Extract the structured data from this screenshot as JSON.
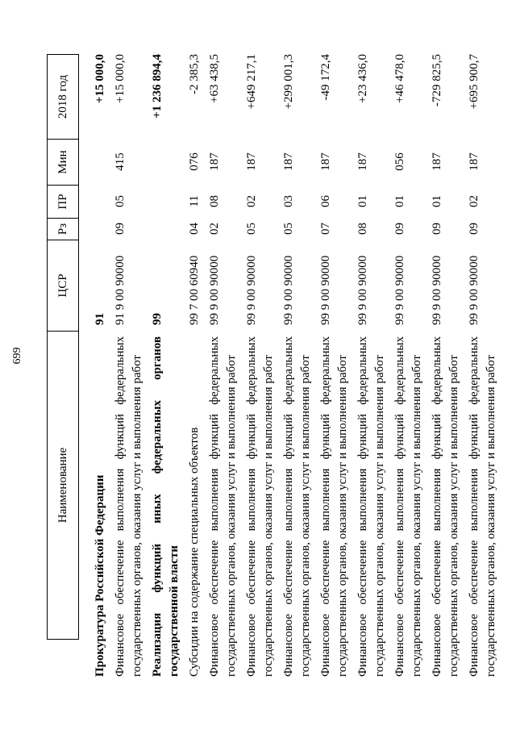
{
  "page": {
    "number": "699"
  },
  "table": {
    "headers": {
      "name": "Наименование",
      "csr": "ЦСР",
      "rz": "Рз",
      "pr": "ПР",
      "min": "Мин",
      "year": "2018 год"
    },
    "rows": [
      {
        "name_lines": [
          "Прокуратура Российской Федерации"
        ],
        "bold": true,
        "csr": "91",
        "rz": "",
        "pr": "",
        "min": "",
        "amount": "+15 000,0"
      },
      {
        "name_lines": [
          "Финансовое обеспечение выполнения функций федеральных",
          "государственных органов, оказания услуг и выполнения работ"
        ],
        "bold": false,
        "csr": "91 9 00 90000",
        "rz": "09",
        "pr": "05",
        "min": "415",
        "amount": "+15 000,0"
      },
      {
        "name_lines": [
          "Реализация функций иных федеральных органов",
          "государственной власти"
        ],
        "bold": true,
        "csr": "99",
        "rz": "",
        "pr": "",
        "min": "",
        "amount": "+1 236 894,4"
      },
      {
        "name_lines": [
          "Субсидии на содержание специальных объектов"
        ],
        "bold": false,
        "csr": "99 7 00 60940",
        "rz": "04",
        "pr": "11",
        "min": "076",
        "amount": "-2 385,3"
      },
      {
        "name_lines": [
          "Финансовое обеспечение выполнения функций федеральных",
          "государственных органов, оказания услуг и выполнения работ"
        ],
        "bold": false,
        "csr": "99 9 00 90000",
        "rz": "02",
        "pr": "08",
        "min": "187",
        "amount": "+63 438,5"
      },
      {
        "name_lines": [
          "Финансовое обеспечение выполнения функций федеральных",
          "государственных органов, оказания услуг и выполнения работ"
        ],
        "bold": false,
        "csr": "99 9 00 90000",
        "rz": "05",
        "pr": "02",
        "min": "187",
        "amount": "+649 217,1"
      },
      {
        "name_lines": [
          "Финансовое обеспечение выполнения функций федеральных",
          "государственных органов, оказания услуг и выполнения работ"
        ],
        "bold": false,
        "csr": "99 9 00 90000",
        "rz": "05",
        "pr": "03",
        "min": "187",
        "amount": "+299 001,3"
      },
      {
        "name_lines": [
          "Финансовое обеспечение выполнения функций федеральных",
          "государственных органов, оказания услуг и выполнения работ"
        ],
        "bold": false,
        "csr": "99 9 00 90000",
        "rz": "07",
        "pr": "06",
        "min": "187",
        "amount": "-49 172,4"
      },
      {
        "name_lines": [
          "Финансовое обеспечение выполнения функций федеральных",
          "государственных органов, оказания услуг и выполнения работ"
        ],
        "bold": false,
        "csr": "99 9 00 90000",
        "rz": "08",
        "pr": "01",
        "min": "187",
        "amount": "+23 436,0"
      },
      {
        "name_lines": [
          "Финансовое обеспечение выполнения функций федеральных",
          "государственных органов, оказания услуг и выполнения работ"
        ],
        "bold": false,
        "csr": "99 9 00 90000",
        "rz": "09",
        "pr": "01",
        "min": "056",
        "amount": "+46 478,0"
      },
      {
        "name_lines": [
          "Финансовое обеспечение выполнения функций федеральных",
          "государственных органов, оказания услуг и выполнения работ"
        ],
        "bold": false,
        "csr": "99 9 00 90000",
        "rz": "09",
        "pr": "01",
        "min": "187",
        "amount": "-729 825,5"
      },
      {
        "name_lines": [
          "Финансовое обеспечение выполнения функций федеральных",
          "государственных органов, оказания услуг и выполнения работ"
        ],
        "bold": false,
        "csr": "99 9 00 90000",
        "rz": "09",
        "pr": "02",
        "min": "187",
        "amount": "+695 900,7"
      }
    ]
  }
}
